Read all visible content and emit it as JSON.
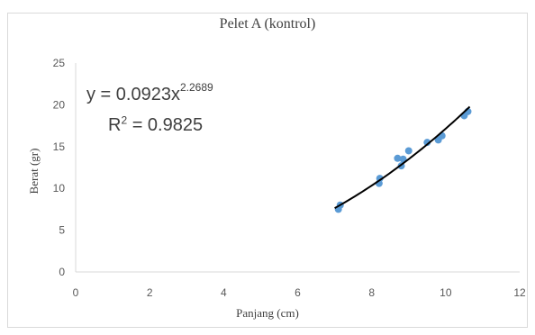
{
  "chart_data": {
    "type": "scatter",
    "title": "Pelet A (kontrol)",
    "xlabel": "Panjang (cm)",
    "ylabel": "Berat (gr)",
    "xlim": [
      0,
      12
    ],
    "ylim": [
      0,
      25
    ],
    "xticks": [
      "0",
      "2",
      "4",
      "6",
      "8",
      "10",
      "12"
    ],
    "yticks": [
      "0",
      "5",
      "10",
      "15",
      "20",
      "25"
    ],
    "grid": false,
    "legend": "none",
    "marker_color": "#5b9bd5",
    "trendline_color": "#000000",
    "series": [
      {
        "points": [
          {
            "x": 7.1,
            "y": 7.5
          },
          {
            "x": 7.15,
            "y": 8.0
          },
          {
            "x": 8.2,
            "y": 10.6
          },
          {
            "x": 8.22,
            "y": 11.2
          },
          {
            "x": 8.7,
            "y": 13.6
          },
          {
            "x": 8.85,
            "y": 13.5
          },
          {
            "x": 8.8,
            "y": 12.7
          },
          {
            "x": 9.0,
            "y": 14.5
          },
          {
            "x": 9.5,
            "y": 15.5
          },
          {
            "x": 9.8,
            "y": 15.8
          },
          {
            "x": 9.9,
            "y": 16.3
          },
          {
            "x": 10.5,
            "y": 18.7
          },
          {
            "x": 10.6,
            "y": 19.2
          }
        ]
      }
    ],
    "trendline": {
      "type": "power",
      "a": 0.0923,
      "b": 2.2689,
      "x_range": [
        7.0,
        10.65
      ],
      "equation_prefix": "y = 0.0923x",
      "equation_exponent": "2.2689",
      "r2_prefix": "R",
      "r2_exponent": "2",
      "r2_suffix": " = 0.9825"
    }
  }
}
